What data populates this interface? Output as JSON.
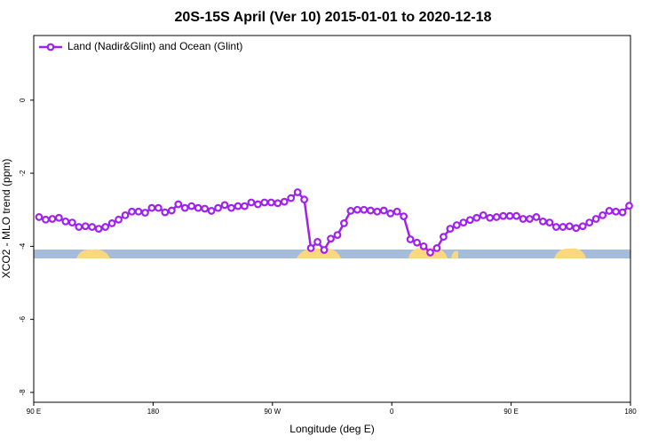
{
  "chart_data": {
    "type": "line",
    "title": "20S-15S April (Ver 10)   2015-01-01 to 2020-12-18",
    "xlabel": "Longitude (deg E)",
    "ylabel": "XCO2 - MLO trend (ppm)",
    "x": [
      94,
      99,
      104,
      109,
      114,
      119,
      124,
      129,
      134,
      139,
      144,
      149,
      154,
      159,
      164,
      169,
      174,
      179,
      184,
      189,
      194,
      199,
      204,
      209,
      214,
      219,
      224,
      229,
      234,
      239,
      244,
      249,
      254,
      259,
      264,
      269,
      274,
      279,
      284,
      289,
      294,
      299,
      304,
      309,
      314,
      319,
      324,
      329,
      334,
      339,
      344,
      349,
      354,
      359,
      364,
      369,
      374,
      379,
      384,
      389,
      394,
      399,
      404,
      409,
      414,
      419,
      424,
      429,
      434,
      439,
      444,
      449,
      454,
      459,
      464,
      469,
      474,
      479,
      484,
      489,
      494,
      499,
      504,
      509,
      514,
      519,
      524,
      529,
      534,
      539
    ],
    "series": [
      {
        "name": "Land (Nadir&Glint) and Ocean (Glint)",
        "color": "#a020f0",
        "values": [
          -3.2,
          -3.27,
          -3.25,
          -3.22,
          -3.32,
          -3.35,
          -3.47,
          -3.45,
          -3.47,
          -3.52,
          -3.47,
          -3.37,
          -3.27,
          -3.15,
          -3.05,
          -3.05,
          -3.08,
          -2.95,
          -2.95,
          -3.07,
          -3.02,
          -2.85,
          -2.95,
          -2.9,
          -2.95,
          -2.97,
          -3.03,
          -2.95,
          -2.87,
          -2.95,
          -2.9,
          -2.9,
          -2.8,
          -2.85,
          -2.8,
          -2.8,
          -2.82,
          -2.78,
          -2.68,
          -2.52,
          -2.72,
          -4.05,
          -3.88,
          -4.1,
          -3.79,
          -3.69,
          -3.37,
          -3.03,
          -3.0,
          -3.0,
          -3.02,
          -3.05,
          -3.02,
          -3.1,
          -3.05,
          -3.18,
          -3.81,
          -3.9,
          -4.0,
          -4.17,
          -4.05,
          -3.74,
          -3.52,
          -3.42,
          -3.35,
          -3.28,
          -3.22,
          -3.15,
          -3.22,
          -3.2,
          -3.17,
          -3.17,
          -3.17,
          -3.25,
          -3.25,
          -3.2,
          -3.32,
          -3.35,
          -3.47,
          -3.47,
          -3.45,
          -3.5,
          -3.45,
          -3.35,
          -3.25,
          -3.15,
          -3.03,
          -3.05,
          -3.07,
          -2.89
        ]
      }
    ],
    "xlim": [
      90,
      540
    ],
    "xticks": [
      {
        "value": 90,
        "label": "90 E"
      },
      180,
      {
        "value": 270,
        "label": "90 W"
      },
      {
        "value": 360,
        "label": "0"
      },
      {
        "value": 450,
        "label": "90 E"
      },
      {
        "value": 540,
        "label": "180"
      }
    ],
    "ylim": [
      -8.27,
      1.77
    ],
    "yticks": [
      -8,
      -6,
      -4,
      -2,
      0
    ],
    "legend": "top-left"
  }
}
